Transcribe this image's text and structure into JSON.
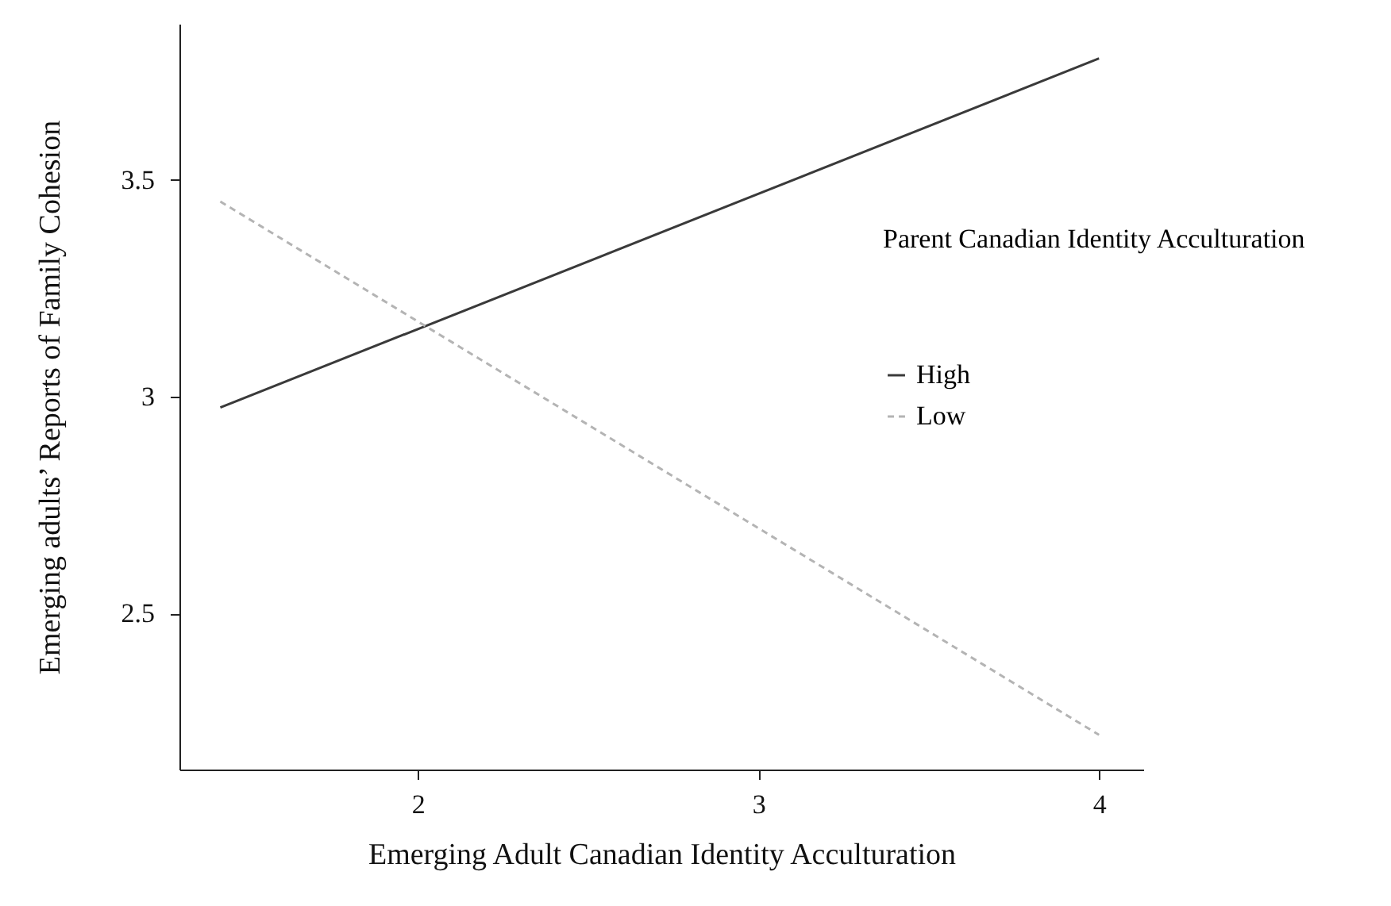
{
  "chart_data": {
    "type": "line",
    "xlabel": "Emerging Adult Canadian Identity Acculturation",
    "ylabel": "Emerging adults’   Reports of Family Cohesion",
    "legend_title": "Parent Canadian Identity Acculturation",
    "x": [
      1.42,
      4
    ],
    "series": [
      {
        "name": "High",
        "color": "#3a3a3a",
        "line_style": "solid",
        "values": [
          2.975,
          3.78
        ]
      },
      {
        "name": "Low",
        "color": "#b4b4b4",
        "line_style": "dashed",
        "values": [
          3.45,
          2.22
        ]
      }
    ],
    "xlim": [
      1.3,
      4.13
    ],
    "xticks": [
      2,
      3,
      4
    ],
    "ylim": [
      2.14,
      3.86
    ],
    "yticks": [
      2.5,
      3,
      3.5
    ],
    "grid": false,
    "legend": "right",
    "marker": "none"
  }
}
